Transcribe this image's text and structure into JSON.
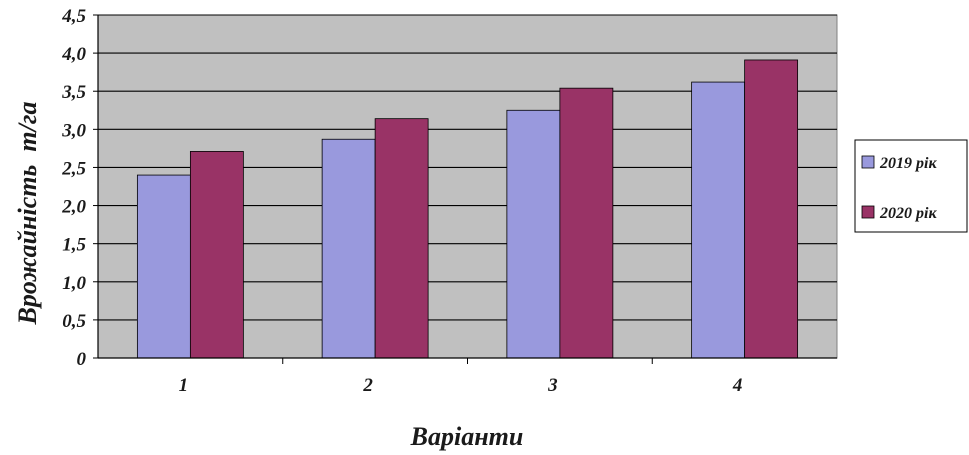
{
  "chart_data": {
    "type": "bar",
    "categories": [
      "1",
      "2",
      "3",
      "4"
    ],
    "series": [
      {
        "name": "2019 рік",
        "values": [
          2.4,
          2.87,
          3.25,
          3.62
        ],
        "color": "#9999dd"
      },
      {
        "name": "2020 рік",
        "values": [
          2.71,
          3.14,
          3.54,
          3.91
        ],
        "color": "#993366"
      }
    ],
    "xlabel": "Варіанти",
    "ylabel": "Врожайність  т/га",
    "ylim": [
      0,
      4.5
    ],
    "yticks": [
      "0",
      "0,5",
      "1,0",
      "1,5",
      "2,0",
      "2,5",
      "3,0",
      "3,5",
      "4,0",
      "4,5"
    ],
    "grid": true,
    "plot_background": "#c0c0c0",
    "legend_position": "right"
  }
}
